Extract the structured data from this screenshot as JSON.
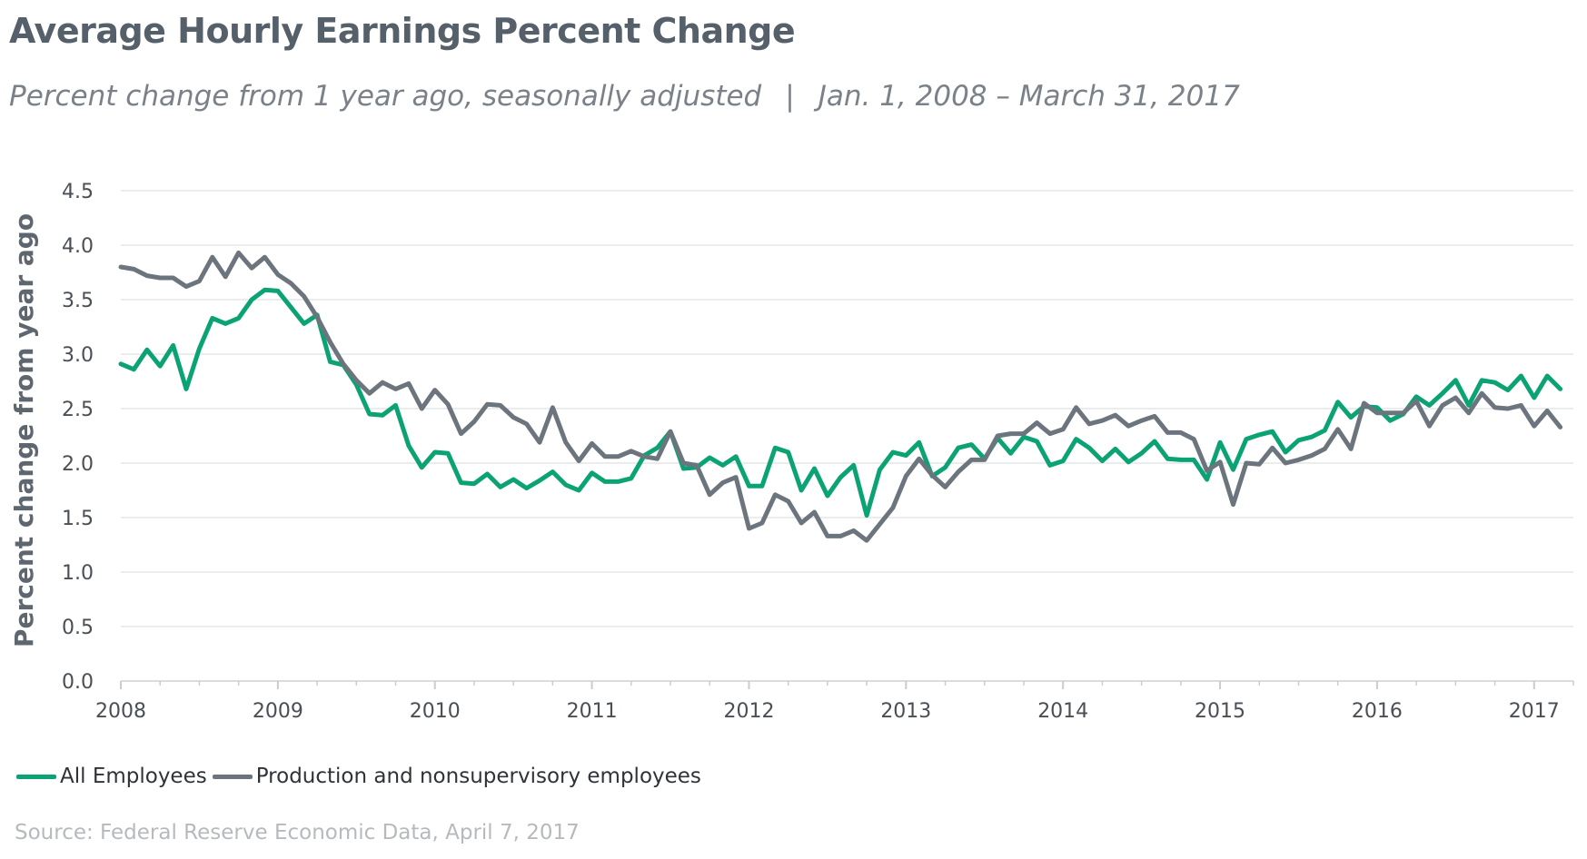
{
  "title": "Average Hourly Earnings Percent Change",
  "subtitle": {
    "left": "Percent change from 1 year ago, seasonally adjusted",
    "separator": "|",
    "right": "Jan. 1, 2008 – March 31, 2017"
  },
  "source": "Source: Federal Reserve Economic Data, April 7, 2017",
  "chart_data": {
    "type": "line",
    "ylabel": "Percent change from year ago",
    "ylim": [
      0,
      4.5
    ],
    "yticks": [
      "0.0",
      "0.5",
      "1.0",
      "1.5",
      "2.0",
      "2.5",
      "3.0",
      "3.5",
      "4.0",
      "4.5"
    ],
    "xlim": [
      2008.0,
      2017.25
    ],
    "xticks": [
      "2008",
      "2009",
      "2010",
      "2011",
      "2012",
      "2013",
      "2014",
      "2015",
      "2016",
      "2017"
    ],
    "grid": true,
    "legend": "bottom-left",
    "x_start": "2008-01",
    "x_step": "monthly",
    "series": [
      {
        "name": "All Employees",
        "color": "#0ba374",
        "values": [
          2.91,
          2.86,
          3.04,
          2.89,
          3.08,
          2.68,
          3.05,
          3.33,
          3.28,
          3.33,
          3.5,
          3.59,
          3.58,
          3.43,
          3.28,
          3.36,
          2.93,
          2.9,
          2.72,
          2.45,
          2.44,
          2.53,
          2.16,
          1.96,
          2.1,
          2.09,
          1.82,
          1.81,
          1.9,
          1.78,
          1.85,
          1.77,
          1.84,
          1.92,
          1.8,
          1.75,
          1.91,
          1.83,
          1.83,
          1.86,
          2.07,
          2.14,
          2.29,
          1.95,
          1.96,
          2.05,
          1.98,
          2.06,
          1.79,
          1.79,
          2.14,
          2.1,
          1.75,
          1.95,
          1.7,
          1.87,
          1.98,
          1.52,
          1.94,
          2.1,
          2.07,
          2.19,
          1.88,
          1.96,
          2.14,
          2.17,
          2.04,
          2.23,
          2.09,
          2.24,
          2.2,
          1.98,
          2.02,
          2.22,
          2.14,
          2.02,
          2.13,
          2.01,
          2.09,
          2.2,
          2.04,
          2.03,
          2.03,
          1.85,
          2.19,
          1.94,
          2.22,
          2.26,
          2.29,
          2.1,
          2.21,
          2.24,
          2.3,
          2.56,
          2.42,
          2.52,
          2.51,
          2.39,
          2.45,
          2.61,
          2.53,
          2.64,
          2.76,
          2.53,
          2.76,
          2.74,
          2.67,
          2.8,
          2.6,
          2.8,
          2.68
        ]
      },
      {
        "name": "Production and nonsupervisory employees",
        "color": "#6c757e",
        "values": [
          3.8,
          3.78,
          3.72,
          3.7,
          3.7,
          3.62,
          3.67,
          3.89,
          3.71,
          3.93,
          3.79,
          3.89,
          3.73,
          3.65,
          3.53,
          3.34,
          3.11,
          2.91,
          2.76,
          2.64,
          2.74,
          2.68,
          2.73,
          2.5,
          2.67,
          2.54,
          2.27,
          2.38,
          2.54,
          2.53,
          2.42,
          2.36,
          2.19,
          2.51,
          2.19,
          2.02,
          2.18,
          2.06,
          2.06,
          2.11,
          2.06,
          2.04,
          2.29,
          2.0,
          1.98,
          1.71,
          1.82,
          1.87,
          1.4,
          1.45,
          1.71,
          1.65,
          1.45,
          1.55,
          1.33,
          1.33,
          1.38,
          1.29,
          1.44,
          1.59,
          1.88,
          2.04,
          1.89,
          1.78,
          1.92,
          2.03,
          2.03,
          2.25,
          2.27,
          2.27,
          2.37,
          2.27,
          2.31,
          2.51,
          2.36,
          2.39,
          2.44,
          2.34,
          2.39,
          2.43,
          2.28,
          2.28,
          2.22,
          1.93,
          2.01,
          1.62,
          2.0,
          1.99,
          2.14,
          2.0,
          2.03,
          2.07,
          2.13,
          2.31,
          2.13,
          2.55,
          2.46,
          2.46,
          2.46,
          2.57,
          2.34,
          2.53,
          2.6,
          2.46,
          2.64,
          2.51,
          2.5,
          2.53,
          2.34,
          2.48,
          2.33
        ]
      }
    ]
  }
}
